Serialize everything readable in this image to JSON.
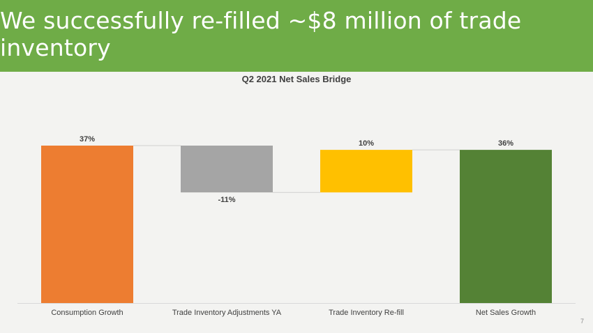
{
  "slide": {
    "title": "We successfully re-filled ~$8 million of trade inventory",
    "page_number": "7"
  },
  "colors": {
    "banner": "#6fac47",
    "background": "#f3f3f1"
  },
  "chart_data": {
    "type": "waterfall",
    "title": "Q2 2021 Net Sales Bridge",
    "xlabel": "",
    "ylabel": "",
    "unit": "%",
    "grid": false,
    "legend": "none",
    "categories": [
      "Consumption Growth",
      "Trade Inventory Adjustments YA",
      "Trade Inventory Re-fill",
      "Net Sales Growth"
    ],
    "values": [
      37,
      -11,
      10,
      36
    ],
    "labels": [
      "37%",
      "-11%",
      "10%",
      "36%"
    ],
    "kinds": [
      "total",
      "delta",
      "delta",
      "total"
    ],
    "bar_colors": [
      "#ed7d31",
      "#a5a5a5",
      "#ffc000",
      "#548235"
    ],
    "connectors": true,
    "ylim": [
      0,
      37
    ]
  }
}
